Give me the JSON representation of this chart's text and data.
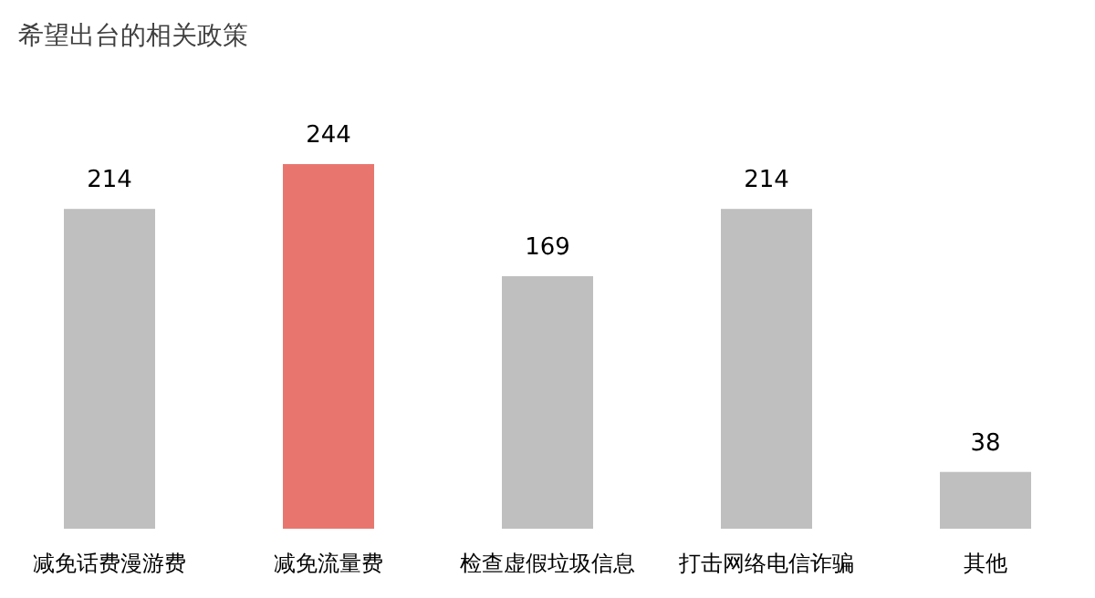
{
  "chart_data": {
    "type": "bar",
    "title": "希望出台的相关政策",
    "categories": [
      "减免话费漫游费",
      "减免流量费",
      "检查虚假垃圾信息",
      "打击网络电信诈骗",
      "其他"
    ],
    "values": [
      214,
      244,
      169,
      214,
      38
    ],
    "colors": [
      "#bfbfbf",
      "#e8766f",
      "#bfbfbf",
      "#bfbfbf",
      "#bfbfbf"
    ],
    "data_labels": true
  }
}
